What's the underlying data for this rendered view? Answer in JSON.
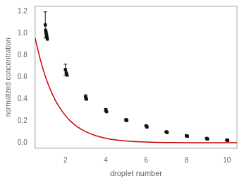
{
  "chart_data": {
    "type": "scatter",
    "xlabel": "droplet number",
    "ylabel": "normalized concentration",
    "xlim": [
      0.5,
      10.5
    ],
    "ylim": [
      -0.05,
      1.25
    ],
    "xticks": [
      2,
      4,
      6,
      8,
      10
    ],
    "yticks": [
      {
        "value": 0,
        "label": "0.0"
      },
      0.2,
      0.4,
      0.6,
      0.8,
      {
        "value": 1.0,
        "label": "1.0"
      },
      1.2
    ],
    "grid": false,
    "series": [
      {
        "type": "line",
        "color": "#cc0000",
        "line_style": "solid",
        "x": [
          0.5,
          0.75,
          1.0,
          1.25,
          1.5,
          1.75,
          2.0,
          2.25,
          2.5,
          2.75,
          3.0,
          3.5,
          4.0,
          4.5,
          5.0,
          5.5,
          6.0,
          6.5,
          7.0,
          7.5,
          8.0,
          8.5,
          9.0,
          9.5,
          10.0,
          10.5
        ],
        "values": [
          0.95739,
          0.76489,
          0.61107,
          0.48819,
          0.39003,
          0.3116,
          0.24894,
          0.19888,
          0.15889,
          0.12694,
          0.10141,
          0.06473,
          0.04131,
          0.02637,
          0.01683,
          0.01074,
          0.006856,
          0.004376,
          0.002793,
          0.001783,
          0.001138,
          0.000726,
          0.000464,
          0.000296,
          0.000189,
          0.000121
        ]
      },
      {
        "type": "scatter",
        "color": "#111111",
        "marker": "square",
        "x": [
          1.0,
          1.02,
          1.04,
          1.06,
          1.08,
          1.1,
          2.0,
          2.04,
          2.08,
          3.0,
          3.04,
          4.0,
          4.04,
          5.0,
          5.04,
          6.0,
          6.04,
          7.0,
          7.04,
          8.0,
          8.04,
          9.0,
          9.04,
          10.0,
          10.04
        ],
        "values": [
          1.08,
          1.03,
          1.01,
          0.99,
          0.97,
          0.95,
          0.67,
          0.64,
          0.62,
          0.42,
          0.4,
          0.3,
          0.285,
          0.21,
          0.205,
          0.155,
          0.145,
          0.1,
          0.095,
          0.065,
          0.06,
          0.04,
          0.035,
          0.025,
          0.022
        ],
        "errors": [
          0.12,
          0.0,
          0.0,
          0.0,
          0.0,
          0.0,
          0.05,
          0.0,
          0.0,
          0.02,
          0.0,
          0.015,
          0.0,
          0.01,
          0.0,
          0.008,
          0.0,
          0.005,
          0.0,
          0.003,
          0.0,
          0.002,
          0.0,
          0.002,
          0.0
        ]
      }
    ]
  }
}
